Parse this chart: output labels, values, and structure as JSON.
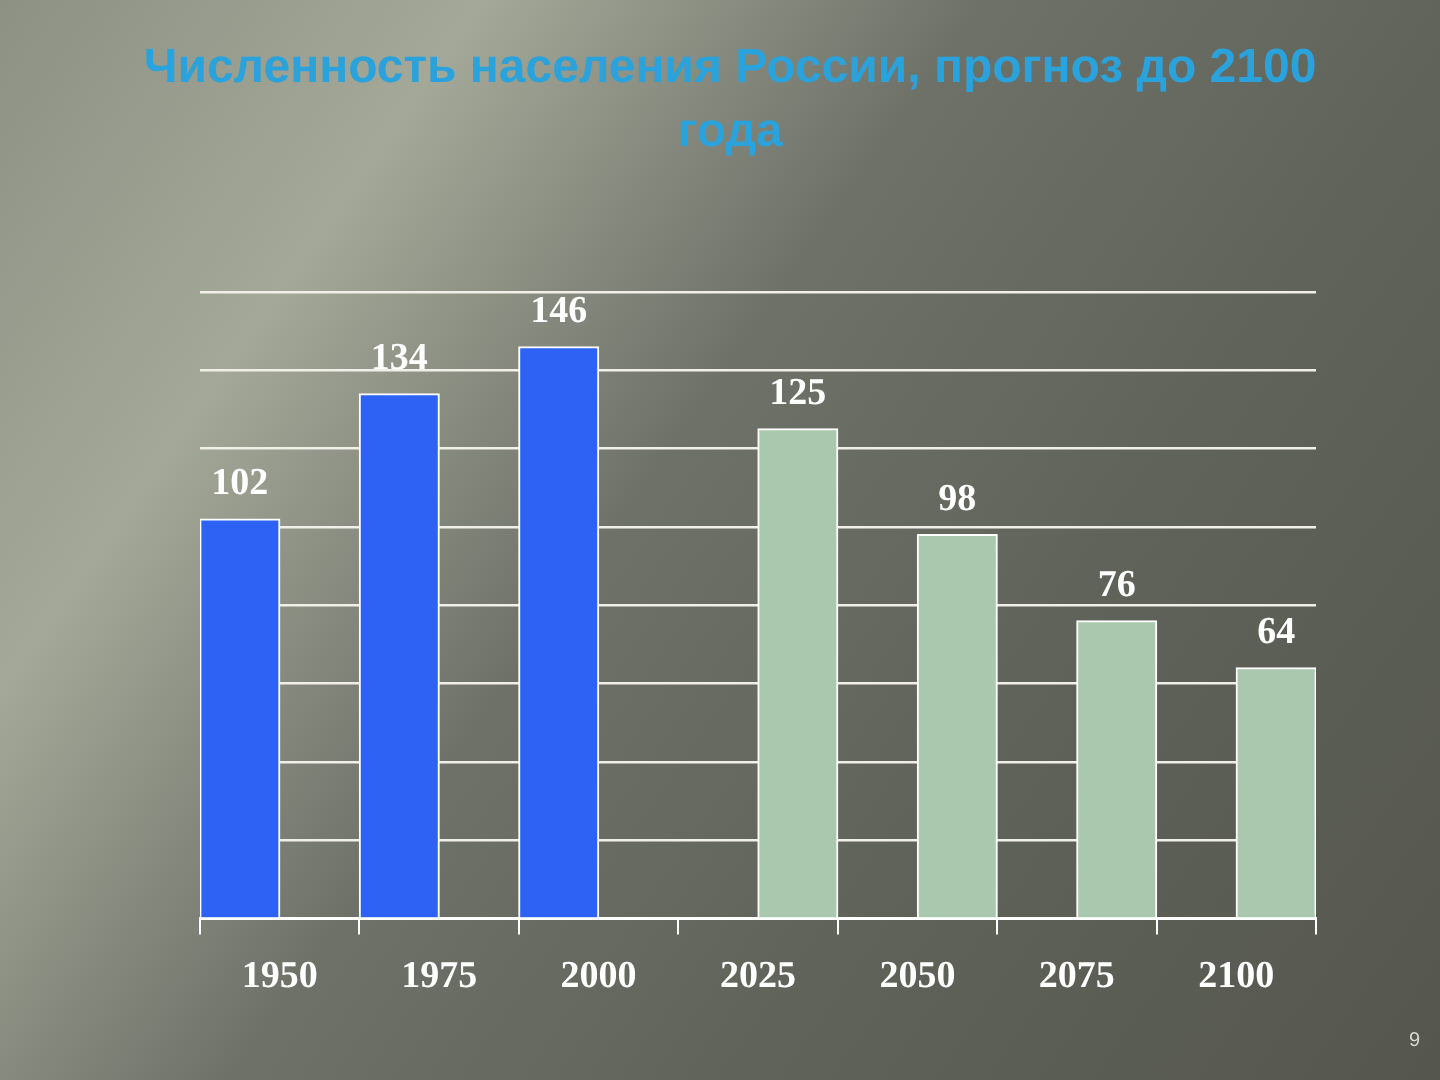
{
  "chart_data": {
    "type": "bar",
    "title": "Численность населения России, прогноз до 2100 года",
    "categories": [
      "1950",
      "1975",
      "2000",
      "2025",
      "2050",
      "2075",
      "2100"
    ],
    "series": [
      {
        "color": "#2e62f5",
        "values": [
          102,
          134,
          146,
          null,
          null,
          null,
          null
        ]
      },
      {
        "color": "#a9c8ad",
        "values": [
          null,
          null,
          null,
          125,
          98,
          76,
          64
        ]
      }
    ],
    "ylim": [
      0,
      160
    ],
    "yticks": [
      {
        "value": 0,
        "label": null
      },
      {
        "value": 20,
        "label": null
      },
      {
        "value": 40,
        "label": null
      },
      {
        "value": 60,
        "label": null
      },
      {
        "value": 80,
        "label": null
      },
      {
        "value": 100,
        "label": null
      },
      {
        "value": 120,
        "label": null
      },
      {
        "value": 140,
        "label": null
      },
      {
        "value": 160,
        "label": null
      }
    ],
    "grid": "y",
    "tick_labels": "x",
    "data_labels": true,
    "annotations": [
      "9"
    ]
  }
}
